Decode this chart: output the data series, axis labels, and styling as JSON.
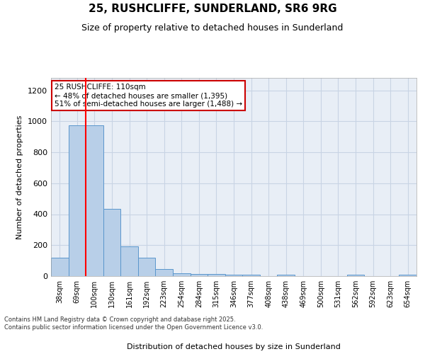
{
  "title_line1": "25, RUSHCLIFFE, SUNDERLAND, SR6 9RG",
  "title_line2": "Size of property relative to detached houses in Sunderland",
  "xlabel": "Distribution of detached houses by size in Sunderland",
  "ylabel": "Number of detached properties",
  "categories": [
    "38sqm",
    "69sqm",
    "100sqm",
    "130sqm",
    "161sqm",
    "192sqm",
    "223sqm",
    "254sqm",
    "284sqm",
    "315sqm",
    "346sqm",
    "377sqm",
    "408sqm",
    "438sqm",
    "469sqm",
    "500sqm",
    "531sqm",
    "562sqm",
    "592sqm",
    "623sqm",
    "654sqm"
  ],
  "values": [
    120,
    975,
    975,
    435,
    190,
    120,
    45,
    20,
    15,
    15,
    10,
    10,
    0,
    8,
    0,
    0,
    0,
    8,
    0,
    0,
    8
  ],
  "bar_color": "#b8cfe8",
  "bar_edge_color": "#5a96cc",
  "grid_color": "#c8d4e4",
  "bg_color": "#e8eef6",
  "red_line_x": 2.0,
  "annotation_text": "25 RUSHCLIFFE: 110sqm\n← 48% of detached houses are smaller (1,395)\n51% of semi-detached houses are larger (1,488) →",
  "annotation_box_color": "#cc0000",
  "ylim": [
    0,
    1280
  ],
  "yticks": [
    0,
    200,
    400,
    600,
    800,
    1000,
    1200
  ],
  "footer_line1": "Contains HM Land Registry data © Crown copyright and database right 2025.",
  "footer_line2": "Contains public sector information licensed under the Open Government Licence v3.0."
}
